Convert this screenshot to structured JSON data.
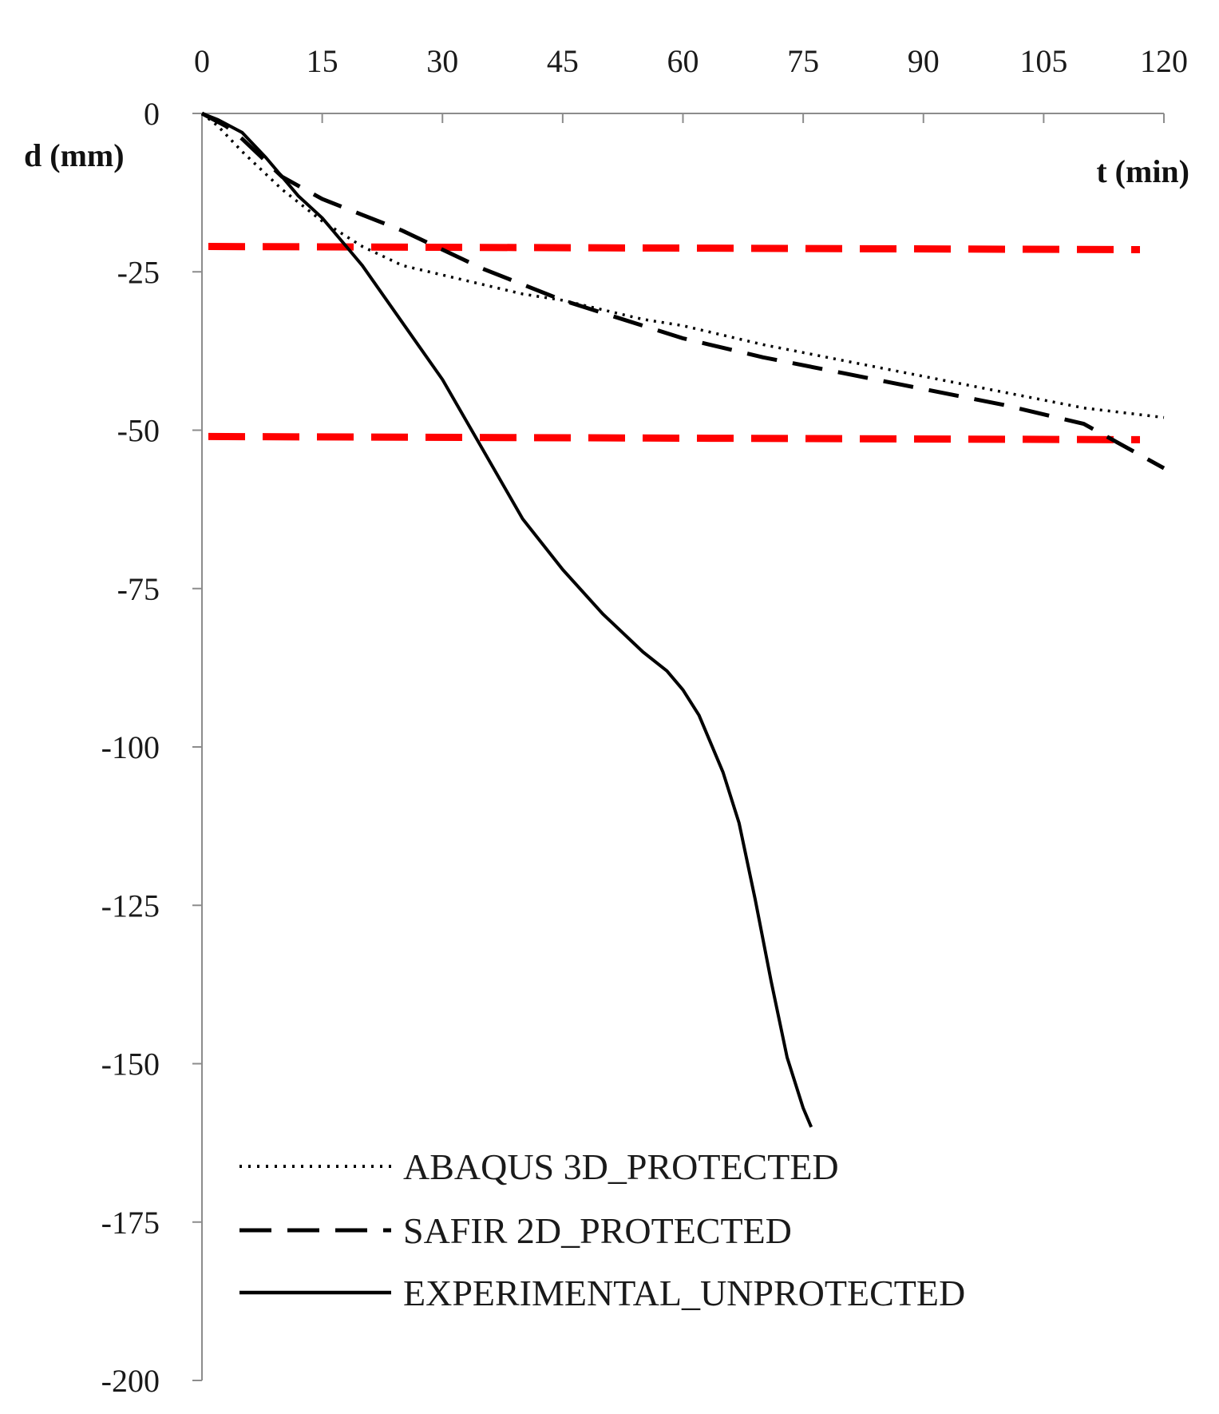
{
  "chart_data": {
    "type": "line",
    "title": "",
    "xlabel": "t (min)",
    "ylabel": "d (mm)",
    "x_axis_position": "top",
    "xlim": [
      0,
      120
    ],
    "ylim": [
      -200,
      0
    ],
    "xticks": [
      "0",
      "15",
      "30",
      "45",
      "60",
      "75",
      "90",
      "105",
      "120"
    ],
    "yticks": [
      "0",
      "-25",
      "-50",
      "-75",
      "-100",
      "-125",
      "-150",
      "-175",
      "-200"
    ],
    "grid": false,
    "legend_position": "bottom-center",
    "series": [
      {
        "name": "ABAQUS 3D_PROTECTED",
        "style": "dotted",
        "color": "#000000",
        "x": [
          0,
          2,
          5,
          10,
          15,
          20,
          25,
          30,
          35,
          40,
          45,
          50,
          55,
          60,
          70,
          80,
          90,
          100,
          110,
          120
        ],
        "y": [
          0,
          -2,
          -6,
          -12,
          -17,
          -21,
          -24,
          -25.5,
          -27,
          -28.5,
          -29.5,
          -31,
          -32.5,
          -33.5,
          -36.5,
          -39,
          -41.5,
          -44,
          -46.5,
          -48
        ]
      },
      {
        "name": "SAFIR 2D_PROTECTED",
        "style": "dashed",
        "color": "#000000",
        "x": [
          0,
          3,
          5,
          10,
          15,
          20,
          25,
          30,
          35,
          40,
          45,
          50,
          55,
          60,
          70,
          80,
          90,
          100,
          110,
          115,
          120
        ],
        "y": [
          0,
          -2,
          -4,
          -10,
          -13.5,
          -16,
          -18.5,
          -21.5,
          -24.5,
          -27,
          -29.5,
          -31.5,
          -33.5,
          -35.5,
          -38.5,
          -41,
          -43.5,
          -46,
          -49,
          -52.5,
          -56
        ]
      },
      {
        "name": "EXPERIMENTAL_UNPROTECTED",
        "style": "solid",
        "color": "#000000",
        "x": [
          0,
          2,
          5,
          8,
          10,
          12,
          15,
          18,
          20,
          25,
          30,
          35,
          40,
          45,
          50,
          55,
          58,
          60,
          62,
          65,
          67,
          69,
          71,
          73,
          75,
          76
        ],
        "y": [
          0,
          -1,
          -3,
          -7,
          -10,
          -13,
          -16.5,
          -21,
          -24,
          -33,
          -42,
          -53,
          -64,
          -72,
          -79,
          -85,
          -88,
          -91,
          -95,
          -104,
          -112,
          -124,
          -137,
          -149,
          -157,
          -160
        ]
      }
    ],
    "reference_lines": [
      {
        "y": -21,
        "style": "dashed",
        "color": "#ff0000"
      },
      {
        "y": -51,
        "style": "dashed",
        "color": "#ff0000"
      }
    ]
  }
}
